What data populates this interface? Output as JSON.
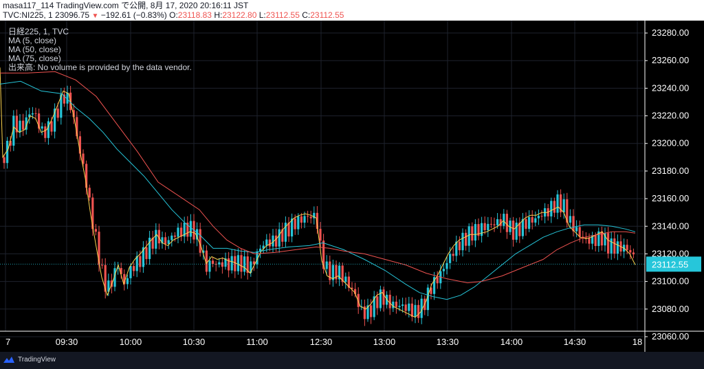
{
  "header": {
    "line1": "masa117_114 TradingView.com で公開, 8月 17, 2020 20:16:11 JST",
    "symbol": "TVC:NI225, 1",
    "price": "23096.75",
    "change": "−192.61 (−0.83%)",
    "o_label": "O:",
    "o_val": "23118.83",
    "h_label": "H:",
    "h_val": "23122.80",
    "l_label": "L:",
    "l_val": "23112.55",
    "c_label": "C:",
    "c_val": "23112.55"
  },
  "legend": {
    "title": "日経225, 1, TVC",
    "ma5": "MA (5, close)",
    "ma50": "MA (50, close)",
    "ma75": "MA (75, close)",
    "volume": "出来高: No volume is provided by the data vendor."
  },
  "footer": {
    "brand": "TradingView"
  },
  "colors": {
    "up": "#26c6da",
    "down": "#ef5350",
    "ma5": "#ffd54f",
    "ma50": "#26c6da",
    "ma75": "#ef5350",
    "last": "#26c6da"
  },
  "chart_data": {
    "type": "line",
    "y_ticks": [
      "23060.00",
      "23080.00",
      "23100.00",
      "23120.00",
      "23140.00",
      "23160.00",
      "23180.00",
      "23200.00",
      "23220.00",
      "23240.00",
      "23260.00",
      "23280.00"
    ],
    "x_ticks": [
      "7",
      "09:30",
      "10:00",
      "10:30",
      "11:00",
      "12:30",
      "13:00",
      "13:30",
      "14:00",
      "14:30",
      "18"
    ],
    "last_price_label": "23112.55",
    "ylim": [
      23055,
      23285
    ],
    "series": [
      {
        "name": "MA (5, close)",
        "points": [
          [
            0,
            23255
          ],
          [
            4,
            23190
          ],
          [
            12,
            23196
          ],
          [
            20,
            23212
          ],
          [
            28,
            23208
          ],
          [
            36,
            23210
          ],
          [
            44,
            23220
          ],
          [
            52,
            23218
          ],
          [
            60,
            23208
          ],
          [
            68,
            23210
          ],
          [
            76,
            23218
          ],
          [
            84,
            23228
          ],
          [
            92,
            23238
          ],
          [
            100,
            23236
          ],
          [
            108,
            23218
          ],
          [
            116,
            23195
          ],
          [
            124,
            23175
          ],
          [
            132,
            23148
          ],
          [
            140,
            23125
          ],
          [
            148,
            23103
          ],
          [
            156,
            23090
          ],
          [
            164,
            23100
          ],
          [
            172,
            23112
          ],
          [
            180,
            23098
          ],
          [
            188,
            23110
          ],
          [
            196,
            23116
          ],
          [
            204,
            23120
          ],
          [
            212,
            23125
          ],
          [
            220,
            23130
          ],
          [
            228,
            23134
          ],
          [
            236,
            23128
          ],
          [
            244,
            23126
          ],
          [
            252,
            23130
          ],
          [
            260,
            23132
          ],
          [
            268,
            23134
          ],
          [
            276,
            23136
          ],
          [
            284,
            23135
          ],
          [
            292,
            23126
          ],
          [
            300,
            23113
          ],
          [
            308,
            23118
          ],
          [
            316,
            23116
          ],
          [
            324,
            23117
          ],
          [
            332,
            23115
          ],
          [
            340,
            23114
          ],
          [
            348,
            23112
          ],
          [
            356,
            23110
          ],
          [
            364,
            23106
          ],
          [
            372,
            23114
          ],
          [
            380,
            23122
          ],
          [
            388,
            23126
          ],
          [
            396,
            23128
          ],
          [
            404,
            23132
          ],
          [
            412,
            23138
          ],
          [
            420,
            23142
          ],
          [
            428,
            23146
          ],
          [
            436,
            23148
          ],
          [
            444,
            23149
          ],
          [
            452,
            23148
          ],
          [
            460,
            23146
          ],
          [
            468,
            23115
          ],
          [
            476,
            23104
          ],
          [
            484,
            23102
          ],
          [
            492,
            23104
          ],
          [
            500,
            23100
          ],
          [
            508,
            23096
          ],
          [
            516,
            23092
          ],
          [
            524,
            23082
          ],
          [
            532,
            23080
          ],
          [
            540,
            23084
          ],
          [
            548,
            23090
          ],
          [
            556,
            23092
          ],
          [
            564,
            23086
          ],
          [
            572,
            23082
          ],
          [
            580,
            23080
          ],
          [
            588,
            23078
          ],
          [
            596,
            23076
          ],
          [
            604,
            23074
          ],
          [
            612,
            23078
          ],
          [
            620,
            23086
          ],
          [
            628,
            23098
          ],
          [
            636,
            23104
          ],
          [
            644,
            23112
          ],
          [
            652,
            23120
          ],
          [
            660,
            23126
          ],
          [
            668,
            23130
          ],
          [
            676,
            23132
          ],
          [
            684,
            23134
          ],
          [
            692,
            23134
          ],
          [
            700,
            23135
          ],
          [
            708,
            23136
          ],
          [
            716,
            23138
          ],
          [
            724,
            23140
          ],
          [
            732,
            23144
          ],
          [
            740,
            23140
          ],
          [
            748,
            23138
          ],
          [
            756,
            23142
          ],
          [
            764,
            23146
          ],
          [
            772,
            23148
          ],
          [
            780,
            23148
          ],
          [
            788,
            23150
          ],
          [
            796,
            23150
          ],
          [
            804,
            23152
          ],
          [
            812,
            23154
          ],
          [
            820,
            23150
          ],
          [
            828,
            23140
          ],
          [
            836,
            23136
          ],
          [
            844,
            23132
          ],
          [
            852,
            23131
          ],
          [
            860,
            23132
          ],
          [
            868,
            23134
          ],
          [
            876,
            23136
          ],
          [
            884,
            23130
          ],
          [
            892,
            23128
          ],
          [
            900,
            23126
          ],
          [
            908,
            23124
          ],
          [
            916,
            23120
          ],
          [
            924,
            23112
          ]
        ]
      },
      {
        "name": "MA (50, close)",
        "points": [
          [
            0,
            23243
          ],
          [
            30,
            23245
          ],
          [
            60,
            23238
          ],
          [
            90,
            23236
          ],
          [
            110,
            23226
          ],
          [
            130,
            23218
          ],
          [
            150,
            23208
          ],
          [
            170,
            23196
          ],
          [
            190,
            23186
          ],
          [
            210,
            23176
          ],
          [
            230,
            23164
          ],
          [
            250,
            23152
          ],
          [
            270,
            23142
          ],
          [
            290,
            23134
          ],
          [
            310,
            23124
          ],
          [
            330,
            23124
          ],
          [
            350,
            23122
          ],
          [
            370,
            23121
          ],
          [
            390,
            23123
          ],
          [
            420,
            23125
          ],
          [
            450,
            23126
          ],
          [
            470,
            23128
          ],
          [
            500,
            23123
          ],
          [
            530,
            23116
          ],
          [
            560,
            23108
          ],
          [
            590,
            23098
          ],
          [
            610,
            23092
          ],
          [
            630,
            23089
          ],
          [
            650,
            23087
          ],
          [
            670,
            23090
          ],
          [
            690,
            23096
          ],
          [
            710,
            23104
          ],
          [
            730,
            23112
          ],
          [
            750,
            23120
          ],
          [
            770,
            23126
          ],
          [
            790,
            23132
          ],
          [
            810,
            23136
          ],
          [
            830,
            23139
          ],
          [
            850,
            23141
          ],
          [
            870,
            23141
          ],
          [
            890,
            23140
          ],
          [
            910,
            23138
          ],
          [
            924,
            23136
          ]
        ]
      },
      {
        "name": "MA (75, close)",
        "points": [
          [
            0,
            23251
          ],
          [
            40,
            23251
          ],
          [
            80,
            23252
          ],
          [
            110,
            23246
          ],
          [
            140,
            23234
          ],
          [
            170,
            23214
          ],
          [
            200,
            23194
          ],
          [
            230,
            23172
          ],
          [
            260,
            23162
          ],
          [
            290,
            23152
          ],
          [
            310,
            23140
          ],
          [
            330,
            23130
          ],
          [
            350,
            23124
          ],
          [
            370,
            23120
          ],
          [
            400,
            23121
          ],
          [
            430,
            23123
          ],
          [
            460,
            23125
          ],
          [
            480,
            23124
          ],
          [
            500,
            23122
          ],
          [
            530,
            23120
          ],
          [
            560,
            23116
          ],
          [
            590,
            23112
          ],
          [
            620,
            23106
          ],
          [
            650,
            23102
          ],
          [
            680,
            23099
          ],
          [
            700,
            23100
          ],
          [
            730,
            23104
          ],
          [
            760,
            23110
          ],
          [
            790,
            23116
          ],
          [
            810,
            23123
          ],
          [
            830,
            23128
          ],
          [
            850,
            23132
          ],
          [
            870,
            23134
          ],
          [
            890,
            23136
          ],
          [
            910,
            23136
          ],
          [
            924,
            23135
          ]
        ]
      }
    ]
  }
}
